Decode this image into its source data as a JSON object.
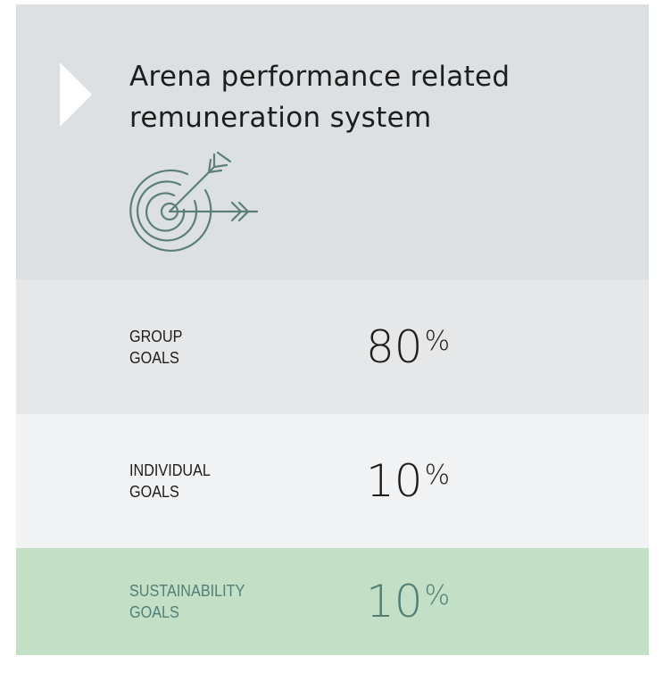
{
  "header": {
    "title": [
      "Arena performance related",
      "remuneration system"
    ]
  },
  "rows": [
    {
      "label": [
        "GROUP",
        "GOALS"
      ],
      "value": "80",
      "unit": "%"
    },
    {
      "label": [
        "INDIVIDUAL",
        "GOALS"
      ],
      "value": "10",
      "unit": "%"
    },
    {
      "label": [
        "SUSTAINABILITY",
        "GOALS"
      ],
      "value": "10",
      "unit": "%"
    }
  ]
}
